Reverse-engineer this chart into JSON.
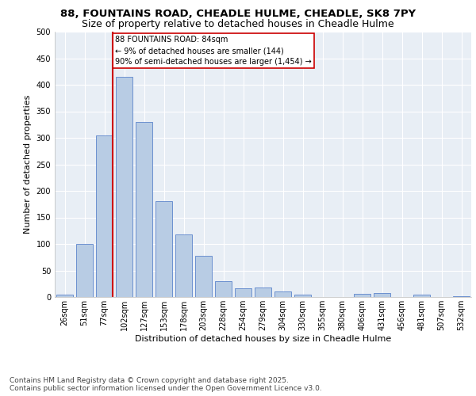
{
  "title1": "88, FOUNTAINS ROAD, CHEADLE HULME, CHEADLE, SK8 7PY",
  "title2": "Size of property relative to detached houses in Cheadle Hulme",
  "xlabel": "Distribution of detached houses by size in Cheadle Hulme",
  "ylabel": "Number of detached properties",
  "categories": [
    "26sqm",
    "51sqm",
    "77sqm",
    "102sqm",
    "127sqm",
    "153sqm",
    "178sqm",
    "203sqm",
    "228sqm",
    "254sqm",
    "279sqm",
    "304sqm",
    "330sqm",
    "355sqm",
    "380sqm",
    "406sqm",
    "431sqm",
    "456sqm",
    "481sqm",
    "507sqm",
    "532sqm"
  ],
  "values": [
    4,
    100,
    305,
    415,
    330,
    180,
    118,
    77,
    30,
    17,
    18,
    10,
    5,
    0,
    0,
    6,
    7,
    0,
    4,
    0,
    2
  ],
  "bar_color": "#b8cce4",
  "bar_edge_color": "#4472c4",
  "vline_x_index": 2,
  "vline_color": "#cc0000",
  "annotation_text": "88 FOUNTAINS ROAD: 84sqm\n← 9% of detached houses are smaller (144)\n90% of semi-detached houses are larger (1,454) →",
  "annotation_box_color": "#ffffff",
  "annotation_box_edge": "#cc0000",
  "ylim": [
    0,
    500
  ],
  "yticks": [
    0,
    50,
    100,
    150,
    200,
    250,
    300,
    350,
    400,
    450,
    500
  ],
  "background_color": "#e8eef5",
  "grid_color": "#ffffff",
  "footer": "Contains HM Land Registry data © Crown copyright and database right 2025.\nContains public sector information licensed under the Open Government Licence v3.0.",
  "title_fontsize": 9.5,
  "subtitle_fontsize": 9,
  "axis_label_fontsize": 8,
  "tick_fontsize": 7,
  "footer_fontsize": 6.5
}
